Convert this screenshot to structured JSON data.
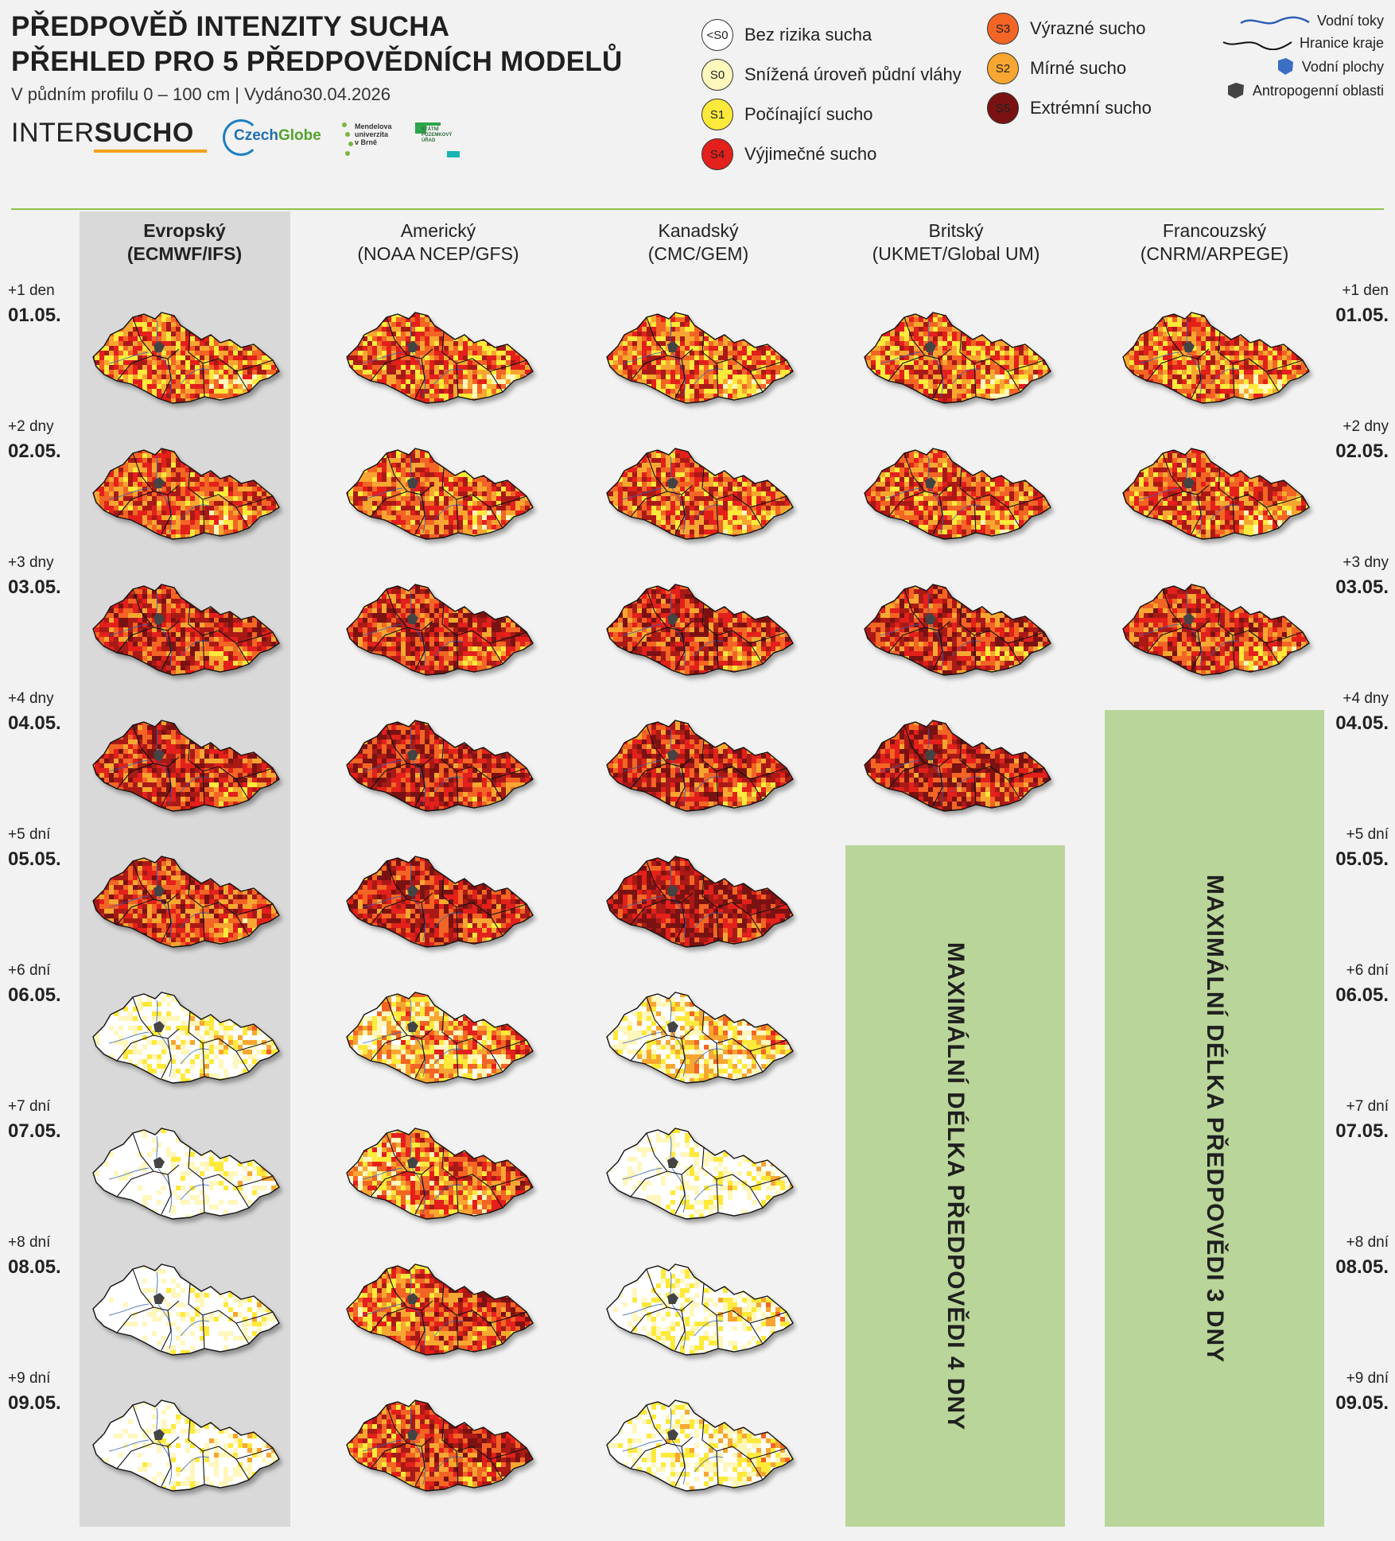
{
  "header": {
    "title_line1": "PŘEDPOVĚĎ INTENZITY SUCHA",
    "title_line2": "PŘEHLED PRO 5 PŘEDPOVĚDNÍCH MODELŮ",
    "subtitle": "V půdním profilu 0 – 100 cm | Vydáno30.04.2026"
  },
  "logos": {
    "intersucho_a": "INTER",
    "intersucho_b": "SUCHO",
    "czechglobe_a": "Czech",
    "czechglobe_b": "Globe",
    "mendel_l1": "Mendelova",
    "mendel_l2": "univerzita",
    "mendel_l3": "v Brně",
    "spu_l1": "STÁTNÍ",
    "spu_l2": "POZEMKOVÝ",
    "spu_l3": "ÚŘAD"
  },
  "legend": [
    {
      "code": "<S0",
      "label": "Bez rizika sucha",
      "color": "#ffffff"
    },
    {
      "code": "S0",
      "label": "Snížená úroveň půdní vláhy",
      "color": "#fff7bc"
    },
    {
      "code": "S1",
      "label": "Počínající sucho",
      "color": "#ffe93b"
    },
    {
      "code": "S4",
      "label": "Výjimečné sucho",
      "color": "#e3201b"
    },
    {
      "code": "S3",
      "label": "Výrazné sucho",
      "color": "#f26524"
    },
    {
      "code": "S2",
      "label": "Mírné sucho",
      "color": "#f7a731"
    },
    {
      "code": "S5",
      "label": "Extrémní sucho",
      "color": "#7a1212"
    }
  ],
  "map_legend": {
    "rivers": "Vodní toky",
    "borders": "Hranice kraje",
    "water": "Vodní plochy",
    "urban": "Antropogenní oblasti"
  },
  "models": [
    {
      "name": "Evropský",
      "code": "(ECMWF/IFS)",
      "days": 9
    },
    {
      "name": "Americký",
      "code": "(NOAA NCEP/GFS)",
      "days": 9
    },
    {
      "name": "Kanadský",
      "code": "(CMC/GEM)",
      "days": 9
    },
    {
      "name": "Britský",
      "code": "(UKMET/Global UM)",
      "days": 4
    },
    {
      "name": "Francouzský",
      "code": "(CNRM/ARPEGE)",
      "days": 3
    }
  ],
  "rows": [
    {
      "offset": "+1 den",
      "date": "01.05."
    },
    {
      "offset": "+2 dny",
      "date": "02.05."
    },
    {
      "offset": "+3 dny",
      "date": "03.05."
    },
    {
      "offset": "+4 dny",
      "date": "04.05."
    },
    {
      "offset": "+5 dní",
      "date": "05.05."
    },
    {
      "offset": "+6 dní",
      "date": "06.05."
    },
    {
      "offset": "+7 dní",
      "date": "07.05."
    },
    {
      "offset": "+8 dní",
      "date": "08.05."
    },
    {
      "offset": "+9 dní",
      "date": "09.05."
    }
  ],
  "max_boxes": {
    "uk": "MAXIMÁLNÍ DÉLKA PŘEDPOVĚDI 4 DNY",
    "fr": "MAXIMÁLNÍ DÉLKA PŘEDPOVĚDI 3 DNY"
  },
  "colors": {
    "divider": "#8cc34a",
    "ecmwf_column": "#d9d9d9",
    "max_box": "#b9d599",
    "river": "#2f5fb5",
    "water": "#3b6fc4",
    "urban": "#444444"
  },
  "map_intensity": [
    [
      0.55,
      0.55,
      0.55,
      0.55,
      0.55
    ],
    [
      0.6,
      0.6,
      0.6,
      0.6,
      0.6
    ],
    [
      0.7,
      0.7,
      0.7,
      0.7,
      0.65
    ],
    [
      0.7,
      0.75,
      0.7,
      0.75,
      null
    ],
    [
      0.65,
      0.75,
      0.8,
      null,
      null
    ],
    [
      0.3,
      0.6,
      0.45,
      null,
      null
    ],
    [
      0.2,
      0.7,
      0.25,
      null,
      null
    ],
    [
      0.2,
      0.8,
      0.3,
      null,
      null
    ],
    [
      0.25,
      0.85,
      0.35,
      null,
      null
    ]
  ]
}
